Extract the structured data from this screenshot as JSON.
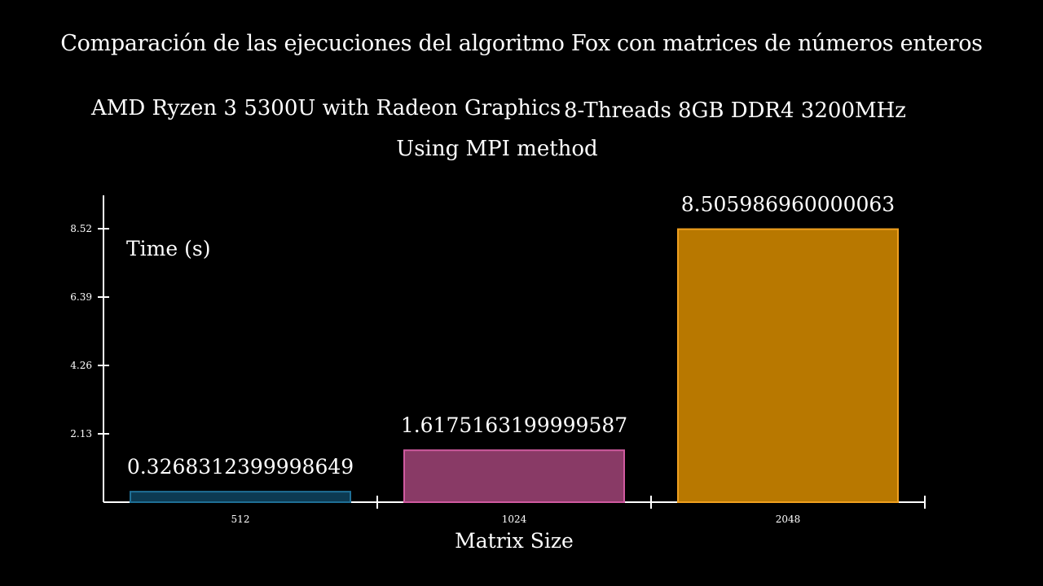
{
  "title": "Comparación de las ejecuciones del algoritmo Fox con matrices de números enteros",
  "subtitle_cpu": "AMD Ryzen 3 5300U with Radeon Graphics",
  "subtitle_specs": "8-Threads 8GB DDR4 3200MHz",
  "subtitle_method": "Using MPI method",
  "chart_data": {
    "type": "bar",
    "categories": [
      "512",
      "1024",
      "2048"
    ],
    "values": [
      0.3268312399998649,
      1.6175163199999587,
      8.505986960000063
    ],
    "value_labels": [
      "0.3268312399998649",
      "1.6175163199999587",
      "8.505986960000063"
    ],
    "xlabel": "Matrix Size",
    "ylabel": "Time (s)",
    "yticks": [
      2.13,
      4.26,
      6.39,
      8.52
    ],
    "ytick_labels": [
      "2.13",
      "4.26",
      "6.39",
      "8.52"
    ],
    "ylim": [
      0,
      8.52
    ],
    "grid": false,
    "colors": {
      "fill": [
        "#0c3a52",
        "#893a66",
        "#b87800"
      ],
      "stroke": [
        "#1f6f96",
        "#d05aa0",
        "#f0a020"
      ],
      "axis": "#ffffff",
      "background": "#000000"
    }
  }
}
